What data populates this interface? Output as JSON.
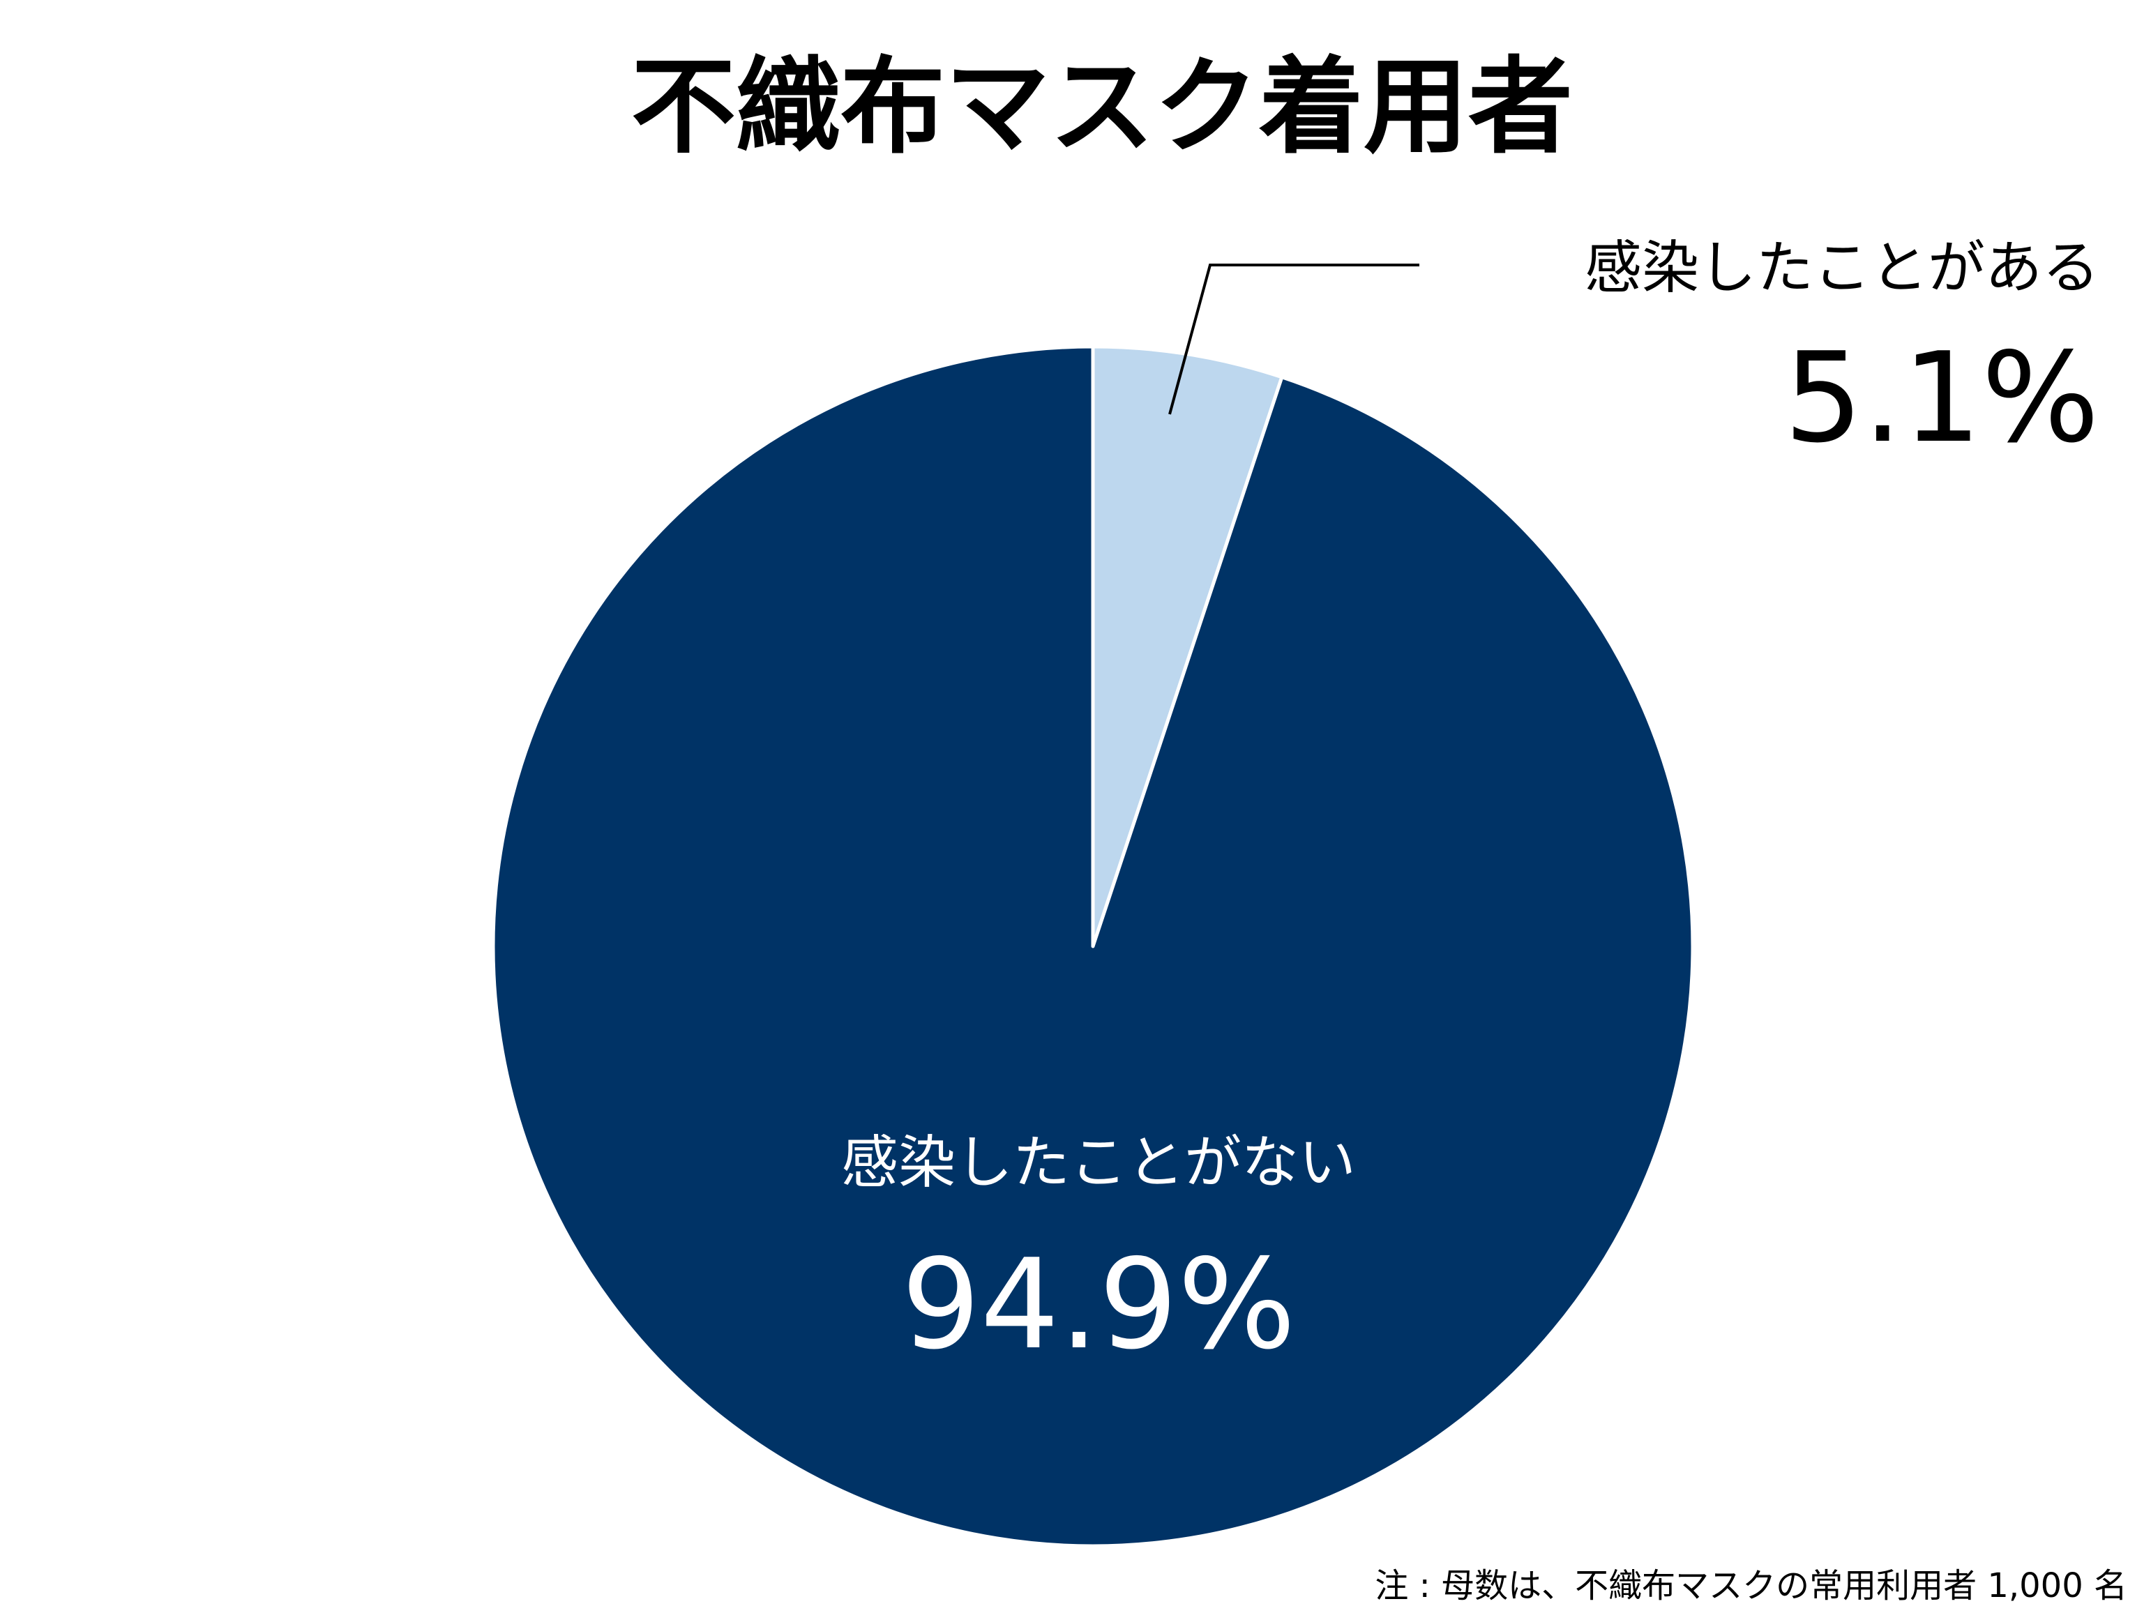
{
  "chart_data": {
    "type": "pie",
    "title": "不織布マスク着用者",
    "slices": [
      {
        "label": "感染したことがある",
        "value": 5.1,
        "value_label": "5.1%",
        "color": "#bdd7ee"
      },
      {
        "label": "感染したことがない",
        "value": 94.9,
        "value_label": "94.9%",
        "color": "#003366"
      }
    ],
    "start": "12 o'clock",
    "direction": "clockwise",
    "legend": "none"
  },
  "footnote": "注 : 母数は、不織布マスクの常用利用者 1,000 名"
}
